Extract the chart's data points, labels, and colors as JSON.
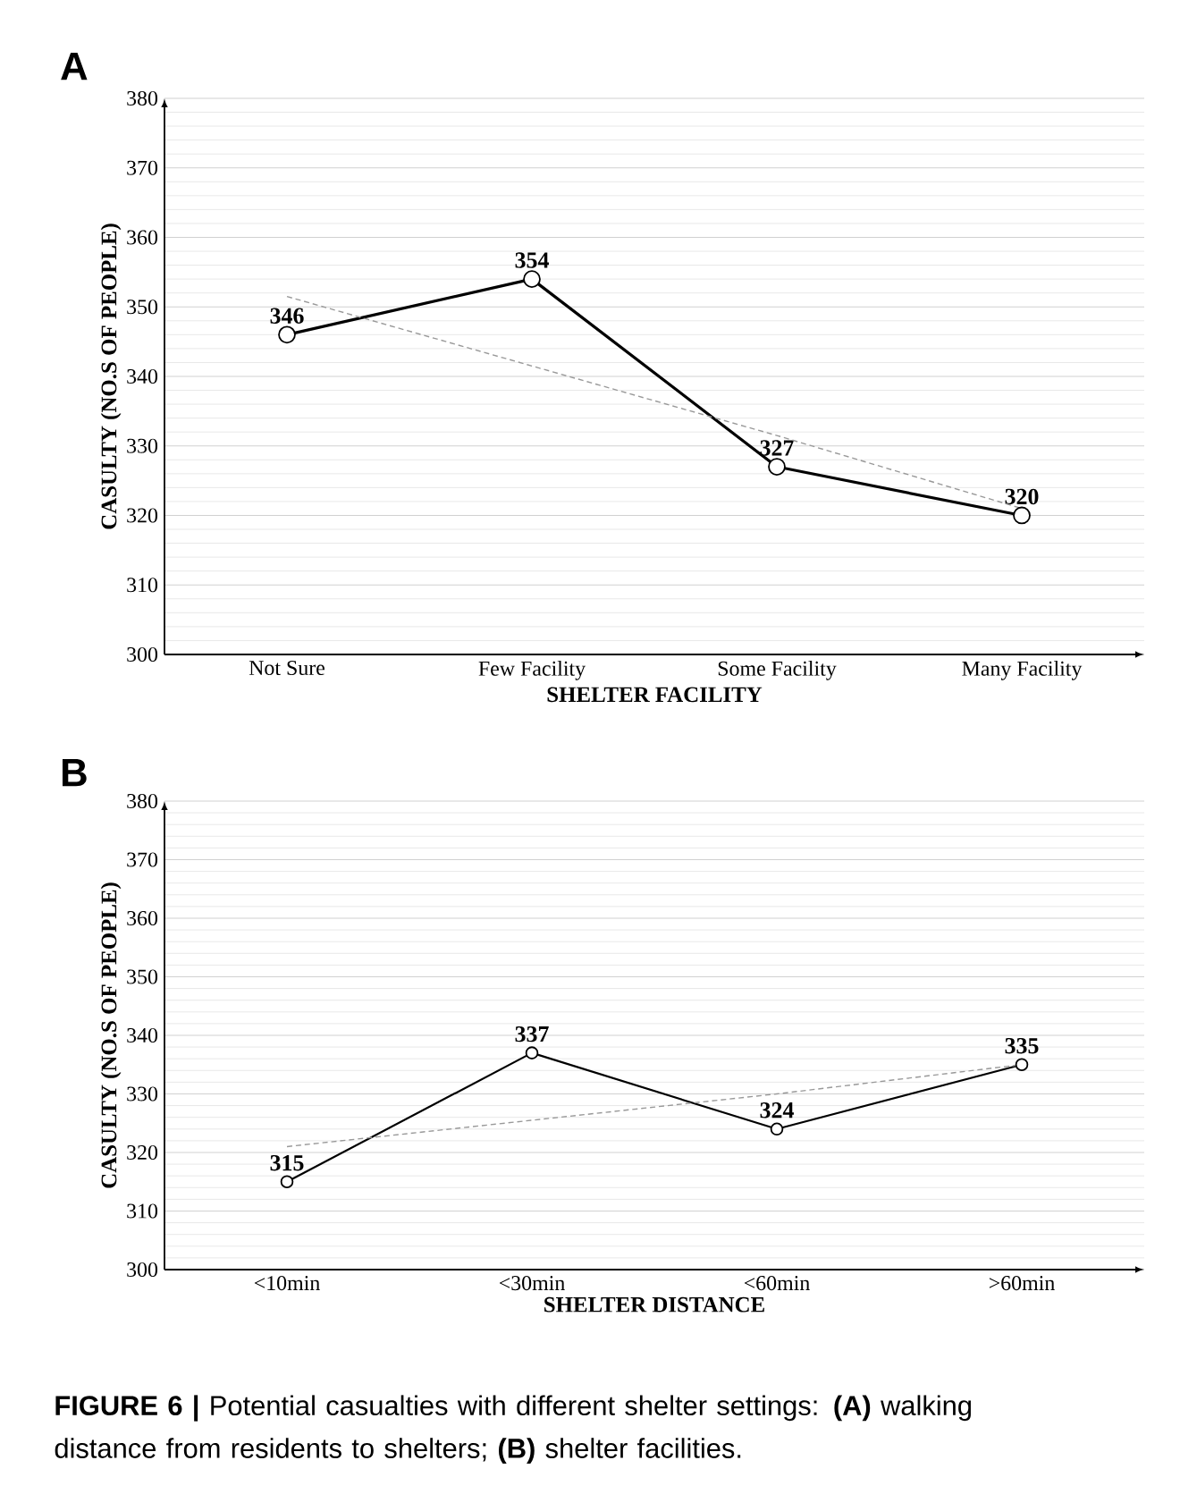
{
  "chart_data": [
    {
      "type": "line",
      "title": "A",
      "xlabel": "SHELTER FACILITY",
      "ylabel": "CASULTY (NO.S OF PEOPLE)",
      "categories": [
        "Not Sure",
        "Few Facility",
        "Some Facility",
        "Many Facility"
      ],
      "ylim": [
        300,
        380
      ],
      "yticks": [
        300,
        310,
        320,
        330,
        340,
        350,
        360,
        370,
        380
      ],
      "grid": "y",
      "series": [
        {
          "color": "#000000",
          "values": [
            346,
            354,
            327,
            320
          ],
          "value_labels": [
            "346",
            "354",
            "327",
            "320"
          ],
          "marker": "circle",
          "line_style": "solid"
        },
        {
          "color": "#999999",
          "values": [
            351.5,
            341.5,
            331.5,
            321
          ],
          "marker": "none",
          "line_style": "dashed"
        }
      ]
    },
    {
      "type": "line",
      "title": "B",
      "xlabel": "SHELTER DISTANCE",
      "ylabel": "CASULTY (NO.S OF PEOPLE)",
      "categories": [
        "<10min",
        "<30min",
        "<60min",
        ">60min"
      ],
      "ylim": [
        300,
        380
      ],
      "yticks": [
        300,
        310,
        320,
        330,
        340,
        350,
        360,
        370,
        380
      ],
      "grid": "y",
      "series": [
        {
          "color": "#000000",
          "values": [
            315,
            337,
            324,
            335
          ],
          "value_labels": [
            "315",
            "337",
            "324",
            "335"
          ],
          "marker": "circle",
          "line_style": "solid"
        },
        {
          "color": "#999999",
          "values": [
            321,
            325.5,
            330,
            335
          ],
          "marker": "none",
          "line_style": "dashed"
        }
      ],
      "annotations": [
        "**FIGURE 6 |** Potential casualties with different shelter settings: **(A)** walking distance from residents to shelters; **(B)** shelter facilities."
      ]
    }
  ]
}
